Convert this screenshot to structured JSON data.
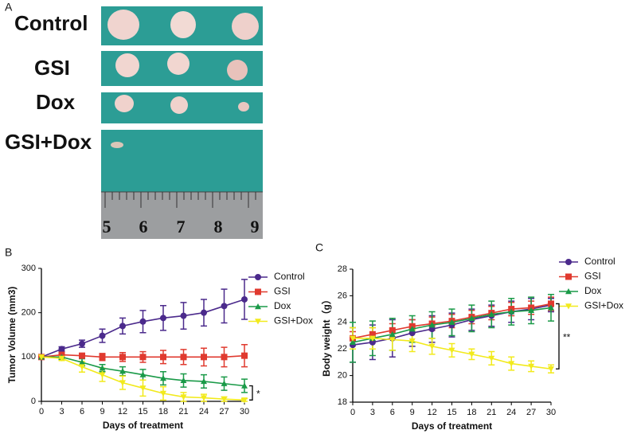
{
  "figure": {
    "panel_labels": [
      "A",
      "B",
      "C"
    ],
    "photo_labels": [
      "Control",
      "GSI",
      "Dox",
      "GSI+Dox"
    ],
    "ruler_labels": [
      "5",
      "6",
      "7",
      "8",
      "9"
    ]
  },
  "chart_data": [
    {
      "type": "line",
      "y_label": "Tumor Volume (mm3)",
      "x_label": "Days of treatment",
      "annotation": "*",
      "x": [
        0,
        3,
        6,
        9,
        12,
        15,
        18,
        21,
        24,
        27,
        30
      ],
      "xlim": [
        0,
        30
      ],
      "xticks": [
        0,
        3,
        6,
        9,
        12,
        15,
        18,
        21,
        24,
        27,
        30
      ],
      "ylim": [
        0,
        300
      ],
      "yticks": [
        0,
        100,
        200,
        300
      ],
      "grid": false,
      "legend": "right",
      "series": [
        {
          "name": "Control",
          "color": "#4b2a8c",
          "marker": "circle",
          "values": [
            100,
            118,
            130,
            148,
            170,
            180,
            188,
            193,
            200,
            215,
            230
          ],
          "errors": [
            0,
            5,
            8,
            15,
            18,
            25,
            28,
            30,
            30,
            38,
            45
          ]
        },
        {
          "name": "GSI",
          "color": "#e03a2f",
          "marker": "square",
          "values": [
            100,
            105,
            103,
            100,
            100,
            100,
            100,
            100,
            100,
            100,
            103
          ],
          "errors": [
            0,
            5,
            5,
            8,
            10,
            12,
            15,
            17,
            20,
            22,
            25
          ]
        },
        {
          "name": "Dox",
          "color": "#1a9a48",
          "marker": "triangle-up",
          "values": [
            100,
            100,
            88,
            75,
            68,
            60,
            52,
            47,
            45,
            40,
            35
          ],
          "errors": [
            0,
            5,
            8,
            8,
            10,
            12,
            15,
            15,
            15,
            15,
            15
          ]
        },
        {
          "name": "GSI+Dox",
          "color": "#f2ea1c",
          "marker": "triangle-down",
          "values": [
            100,
            97,
            78,
            60,
            42,
            30,
            18,
            10,
            8,
            5,
            3
          ],
          "errors": [
            0,
            5,
            12,
            15,
            15,
            18,
            15,
            10,
            8,
            5,
            3
          ]
        }
      ]
    },
    {
      "type": "line",
      "y_label": "Body weight（g）",
      "x_label": "Days of treatment",
      "annotation": "**",
      "x": [
        0,
        3,
        6,
        9,
        12,
        15,
        18,
        21,
        24,
        27,
        30
      ],
      "xlim": [
        0,
        30
      ],
      "xticks": [
        0,
        3,
        6,
        9,
        12,
        15,
        18,
        21,
        24,
        27,
        30
      ],
      "ylim": [
        18,
        28
      ],
      "yticks": [
        18,
        20,
        22,
        24,
        26,
        28
      ],
      "grid": false,
      "legend": "top-right",
      "series": [
        {
          "name": "Control",
          "color": "#4b2a8c",
          "marker": "circle",
          "values": [
            22.3,
            22.5,
            22.8,
            23.2,
            23.5,
            23.8,
            24.2,
            24.5,
            24.8,
            25.0,
            25.3
          ],
          "errors": [
            1.3,
            1.3,
            1.4,
            1.0,
            1.0,
            0.9,
            0.8,
            0.8,
            0.8,
            0.8,
            0.5
          ]
        },
        {
          "name": "GSI",
          "color": "#e03a2f",
          "marker": "square",
          "values": [
            22.8,
            23.1,
            23.4,
            23.7,
            23.9,
            24.1,
            24.4,
            24.7,
            25.0,
            25.1,
            25.4
          ],
          "errors": [
            0.5,
            0.5,
            0.5,
            0.5,
            0.5,
            0.5,
            0.5,
            0.5,
            0.5,
            0.5,
            0.5
          ]
        },
        {
          "name": "Dox",
          "color": "#1a9a48",
          "marker": "triangle-up",
          "values": [
            22.5,
            22.8,
            23.1,
            23.5,
            23.8,
            24.0,
            24.3,
            24.6,
            24.8,
            24.9,
            25.1
          ],
          "errors": [
            1.5,
            1.3,
            1.2,
            1.0,
            1.0,
            1.0,
            1.0,
            1.0,
            1.0,
            1.0,
            1.0
          ]
        },
        {
          "name": "GSI+Dox",
          "color": "#f2ea1c",
          "marker": "triangle-down",
          "values": [
            22.8,
            22.8,
            22.7,
            22.6,
            22.2,
            21.9,
            21.6,
            21.3,
            20.9,
            20.7,
            20.5
          ],
          "errors": [
            0.8,
            0.8,
            0.8,
            0.8,
            0.6,
            0.5,
            0.4,
            0.5,
            0.5,
            0.4,
            0.3
          ]
        }
      ]
    }
  ]
}
